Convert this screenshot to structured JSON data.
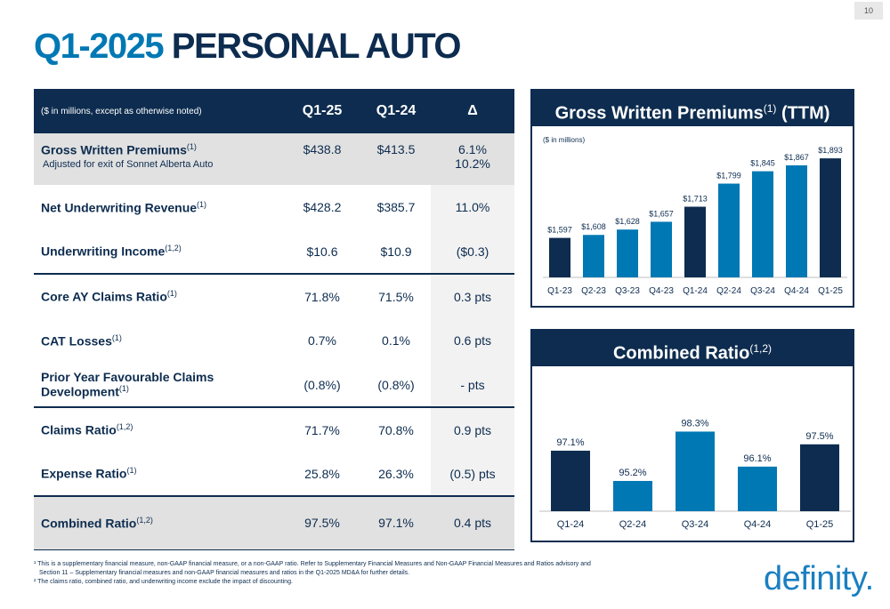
{
  "page_number": "10",
  "title": {
    "part1": "Q1-2025",
    "part2": "PERSONAL AUTO"
  },
  "table": {
    "header": {
      "note": "($ in millions, except as otherwise noted)",
      "col1": "Q1-25",
      "col2": "Q1-24",
      "col3": "Δ"
    },
    "rows": [
      {
        "label": "Gross Written Premiums",
        "sup": "(1)",
        "sublabel": "Adjusted for exit of Sonnet Alberta Auto",
        "q125": "$438.8",
        "q124": "$413.5",
        "delta": "6.1%",
        "delta2": "10.2%"
      },
      {
        "label": "Net Underwriting Revenue",
        "sup": "(1)",
        "q125": "$428.2",
        "q124": "$385.7",
        "delta": "11.0%"
      },
      {
        "label": "Underwriting Income",
        "sup": "(1,2)",
        "q125": "$10.6",
        "q124": "$10.9",
        "delta": "($0.3)"
      },
      {
        "label": "Core AY Claims Ratio",
        "sup": "(1)",
        "q125": "71.8%",
        "q124": "71.5%",
        "delta": "0.3 pts"
      },
      {
        "label": "CAT Losses",
        "sup": "(1)",
        "q125": "0.7%",
        "q124": "0.1%",
        "delta": "0.6 pts"
      },
      {
        "label": "Prior Year Favourable Claims Development",
        "sup": "(1)",
        "q125": "(0.8%)",
        "q124": "(0.8%)",
        "delta": "- pts"
      },
      {
        "label": "Claims Ratio",
        "sup": "(1,2)",
        "q125": "71.7%",
        "q124": "70.8%",
        "delta": "0.9 pts"
      },
      {
        "label": "Expense Ratio",
        "sup": "(1)",
        "q125": "25.8%",
        "q124": "26.3%",
        "delta": "(0.5) pts"
      },
      {
        "label": "Combined Ratio",
        "sup": "(1,2)",
        "q125": "97.5%",
        "q124": "97.1%",
        "delta": "0.4 pts"
      }
    ]
  },
  "gwp_chart": {
    "title": "Gross Written Premiums",
    "title_sup": "(1)",
    "title_suffix": "(TTM)",
    "unit_note": "($ in millions)"
  },
  "cr_chart": {
    "title": "Combined Ratio",
    "title_sup": "(1,2)"
  },
  "footnotes": {
    "f1": "¹ This is a supplementary financial measure, non-GAAP financial measure, or a non-GAAP ratio. Refer to Supplementary Financial Measures and Non-GAAP Financial Measures and Ratios advisory and",
    "f1b": "Section 11 – Supplementary financial measures and non-GAAP financial measures and ratios in the Q1-2025 MD&A for further details.",
    "f2": "² The claims ratio, combined ratio, and underwriting income exclude the impact of discounting."
  },
  "logo_text": "definity.",
  "colors": {
    "navy": "#0d2c4f",
    "blue": "#0078b4",
    "light_gray": "#e1e1e1"
  },
  "chart_data": [
    {
      "type": "bar",
      "title": "Gross Written Premiums (TTM)",
      "categories": [
        "Q1-23",
        "Q2-23",
        "Q3-23",
        "Q4-23",
        "Q1-24",
        "Q2-24",
        "Q3-24",
        "Q4-24",
        "Q1-25"
      ],
      "values": [
        1597,
        1608,
        1628,
        1657,
        1713,
        1799,
        1845,
        1867,
        1893
      ],
      "labels": [
        "$1,597",
        "$1,608",
        "$1,628",
        "$1,657",
        "$1,713",
        "$1,799",
        "$1,845",
        "$1,867",
        "$1,893"
      ],
      "colors": [
        "#0d2c4f",
        "#0078b4",
        "#0078b4",
        "#0078b4",
        "#0d2c4f",
        "#0078b4",
        "#0078b4",
        "#0078b4",
        "#0d2c4f"
      ],
      "ylim": [
        1450,
        1900
      ],
      "grid": false
    },
    {
      "type": "bar",
      "title": "Combined Ratio",
      "categories": [
        "Q1-24",
        "Q2-24",
        "Q3-24",
        "Q4-24",
        "Q1-25"
      ],
      "values": [
        97.1,
        95.2,
        98.3,
        96.1,
        97.5
      ],
      "labels": [
        "97.1%",
        "95.2%",
        "98.3%",
        "96.1%",
        "97.5%"
      ],
      "colors": [
        "#0d2c4f",
        "#0078b4",
        "#0078b4",
        "#0078b4",
        "#0d2c4f"
      ],
      "ylim": [
        93.3,
        100
      ],
      "grid": false
    }
  ]
}
